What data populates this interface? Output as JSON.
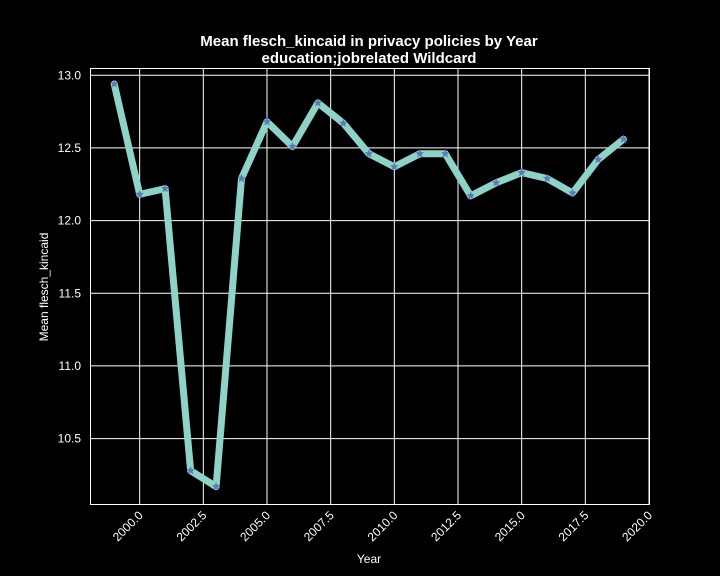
{
  "chart_data": {
    "type": "line",
    "title": "Mean flesch_kincaid in privacy policies by Year",
    "subtitle": "education;jobrelated Wildcard",
    "xlabel": "Year",
    "ylabel": "Mean flesch_kincaid",
    "xlim": [
      1998.05,
      2020.0
    ],
    "ylim": [
      10.05,
      13.05
    ],
    "xticks": [
      2000.0,
      2002.5,
      2005.0,
      2007.5,
      2010.0,
      2012.5,
      2015.0,
      2017.5,
      2020.0
    ],
    "xtick_labels": [
      "2000.0",
      "2002.5",
      "2005.0",
      "2007.5",
      "2010.0",
      "2012.5",
      "2015.0",
      "2017.5",
      "2020.0"
    ],
    "yticks": [
      10.5,
      11.0,
      11.5,
      12.0,
      12.5,
      13.0
    ],
    "ytick_labels": [
      "10.5",
      "11.0",
      "11.5",
      "12.0",
      "12.5",
      "13.0"
    ],
    "grid": true,
    "series": [
      {
        "x": [
          1999,
          2000,
          2001,
          2002,
          2003,
          2004,
          2005,
          2006,
          2007,
          2008,
          2009,
          2010,
          2011,
          2012,
          2013,
          2014,
          2015,
          2016,
          2017,
          2018,
          2019
        ],
        "y": [
          12.94,
          12.18,
          12.22,
          10.28,
          10.17,
          12.29,
          12.68,
          12.51,
          12.81,
          12.67,
          12.46,
          12.37,
          12.46,
          12.46,
          12.17,
          12.26,
          12.33,
          12.29,
          12.19,
          12.42,
          12.56
        ],
        "line_color": "#8dd3c7",
        "marker": "star",
        "marker_color": "#5b78b8"
      }
    ],
    "colors": {
      "background": "#000000",
      "foreground": "#ffffff"
    }
  }
}
